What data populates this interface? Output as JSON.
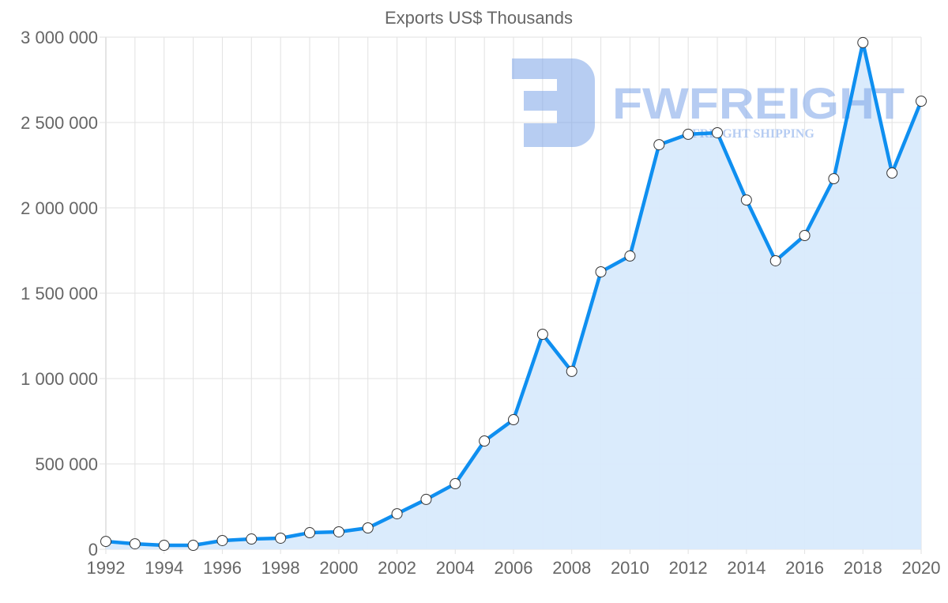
{
  "chart_data": {
    "type": "area",
    "title": "Exports US$ Thousands",
    "xlabel": "",
    "ylabel": "",
    "x": [
      1992,
      1993,
      1994,
      1995,
      1996,
      1997,
      1998,
      1999,
      2000,
      2001,
      2002,
      2003,
      2004,
      2005,
      2006,
      2007,
      2008,
      2009,
      2010,
      2011,
      2012,
      2013,
      2014,
      2015,
      2016,
      2017,
      2018,
      2019,
      2020
    ],
    "series": [
      {
        "name": "Exports US$ Thousands",
        "values": [
          46000,
          32000,
          23000,
          23000,
          51000,
          60000,
          65000,
          97000,
          102000,
          125000,
          208000,
          292000,
          384000,
          634000,
          759000,
          1259000,
          1042000,
          1625000,
          1718000,
          2370000,
          2431000,
          2440000,
          2046000,
          1690000,
          1838000,
          2171000,
          2968000,
          2204000,
          2625000
        ]
      }
    ],
    "ylim": [
      0,
      3000000
    ],
    "xlim": [
      1992,
      2020
    ],
    "y_ticks": [
      "0",
      "500 000",
      "1 000 000",
      "1 500 000",
      "2 000 000",
      "2 500 000",
      "3 000 000"
    ],
    "y_tick_values": [
      0,
      500000,
      1000000,
      1500000,
      2000000,
      2500000,
      3000000
    ],
    "x_ticks": [
      "1992",
      "1994",
      "1996",
      "1998",
      "2000",
      "2002",
      "2004",
      "2006",
      "2008",
      "2010",
      "2012",
      "2014",
      "2016",
      "2018",
      "2020"
    ],
    "grid": true,
    "colors": {
      "line": "#0f8ff0",
      "fill": "#d8eafc",
      "grid": "#e2e2e2",
      "watermark": "#7ba4e8"
    }
  },
  "watermark": {
    "brand": "FWFREIGHT",
    "tagline": "FREIGHT SHIPPING"
  }
}
